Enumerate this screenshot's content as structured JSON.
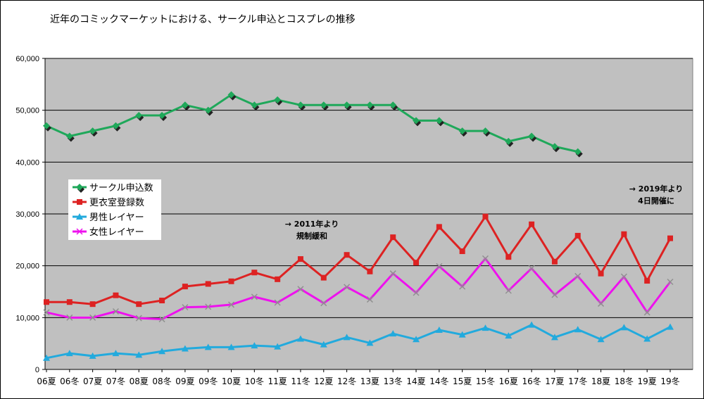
{
  "chart_data": {
    "type": "line",
    "title": "近年のコミックマーケットにおける、サークル申込とコスプレの推移",
    "xlabel": "",
    "ylabel": "",
    "ylim": [
      0,
      60000
    ],
    "yticks": [
      0,
      10000,
      20000,
      30000,
      40000,
      50000,
      60000
    ],
    "ytick_labels": [
      "0",
      "10,000",
      "20,000",
      "30,000",
      "40,000",
      "50,000",
      "60,000"
    ],
    "grid": true,
    "plot_background": "#c0c0c0",
    "legend_position": "left",
    "categories": [
      "06夏",
      "06冬",
      "07夏",
      "07冬",
      "08夏",
      "08冬",
      "09夏",
      "09冬",
      "10夏",
      "10冬",
      "11夏",
      "11冬",
      "12夏",
      "12冬",
      "13夏",
      "13冬",
      "14夏",
      "14冬",
      "15夏",
      "15冬",
      "16夏",
      "16冬",
      "17夏",
      "17冬",
      "18夏",
      "18冬",
      "19夏",
      "19冬"
    ],
    "series": [
      {
        "name": "サークル申込数",
        "color": "#1fa85a",
        "marker": "diamond",
        "values": [
          47000,
          45000,
          46000,
          47000,
          49000,
          49000,
          51000,
          50000,
          53000,
          51000,
          52000,
          51000,
          51000,
          51000,
          51000,
          51000,
          48000,
          48000,
          46000,
          46000,
          44000,
          45000,
          43000,
          42000,
          null,
          null,
          null,
          null
        ]
      },
      {
        "name": "更衣室登録数",
        "color": "#dd2222",
        "marker": "square",
        "values": [
          13000,
          13000,
          12600,
          14300,
          12600,
          13300,
          16000,
          16500,
          17000,
          18700,
          17400,
          21300,
          17700,
          22100,
          18900,
          25500,
          20600,
          27500,
          22800,
          29500,
          21700,
          28000,
          20800,
          25800,
          18500,
          26100,
          17100,
          25300
        ]
      },
      {
        "name": "男性レイヤー",
        "color": "#22aadd",
        "marker": "triangle",
        "values": [
          2200,
          3100,
          2600,
          3100,
          2800,
          3500,
          4000,
          4300,
          4300,
          4600,
          4400,
          5900,
          4800,
          6200,
          5100,
          6900,
          5800,
          7600,
          6700,
          8000,
          6500,
          8600,
          6200,
          7700,
          5800,
          8100,
          5900,
          8200
        ]
      },
      {
        "name": "女性レイヤー",
        "color": "#ee11ee",
        "marker": "x",
        "values": [
          11000,
          10000,
          10000,
          11200,
          9900,
          9700,
          12000,
          12100,
          12500,
          14000,
          12900,
          15500,
          12800,
          15900,
          13500,
          18500,
          14800,
          19900,
          16000,
          21400,
          15200,
          19500,
          14400,
          18000,
          12700,
          17900,
          11000,
          16900
        ]
      }
    ],
    "annotations": [
      {
        "lines": [
          "→ 2011年より",
          "規制緩和"
        ]
      },
      {
        "lines": [
          "→ 2019年より",
          "4日開催に"
        ]
      }
    ]
  }
}
